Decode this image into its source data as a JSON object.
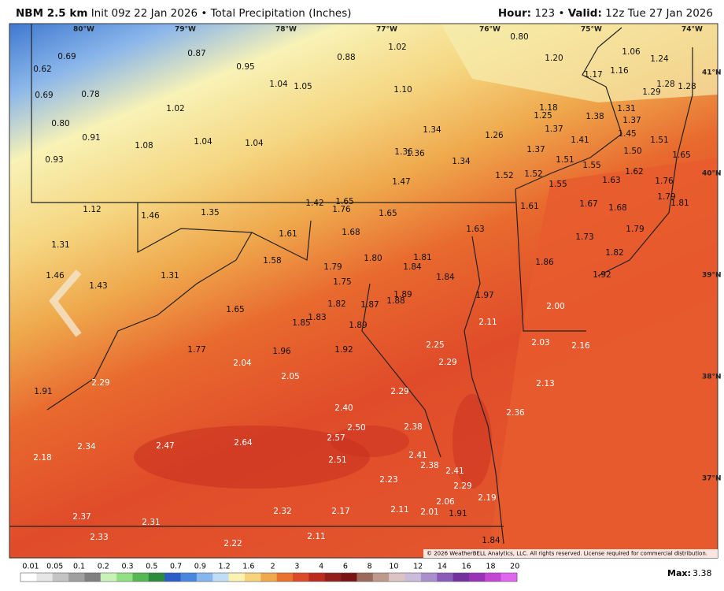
{
  "header": {
    "model": "NBM 2.5 km",
    "init": "Init 09z 22 Jan 2026",
    "sep": "•",
    "product": "Total Precipitation (Inches)",
    "hour_label": "Hour:",
    "hour": "123",
    "valid_label": "Valid:",
    "valid": "12z Tue 27 Jan 2026"
  },
  "map": {
    "longitudes": [
      "80°W",
      "79°W",
      "78°W",
      "77°W",
      "76°W",
      "75°W",
      "74°W"
    ],
    "latitudes": [
      "41°N",
      "40°N",
      "39°N",
      "38°N",
      "37°N"
    ],
    "values": [
      "0.69",
      "0.62",
      "0.69",
      "0.78",
      "0.80",
      "0.91",
      "0.93",
      "0.87",
      "0.95",
      "0.88",
      "1.02",
      "0.80",
      "1.20",
      "1.06",
      "1.24",
      "1.17",
      "1.16",
      "1.28",
      "1.28",
      "1.29",
      "1.04",
      "1.05",
      "1.10",
      "1.02",
      "1.08",
      "1.04",
      "1.04",
      "1.34",
      "1.26",
      "1.18",
      "1.25",
      "1.37",
      "1.38",
      "1.31",
      "1.37",
      "1.45",
      "1.51",
      "1.41",
      "1.37",
      "1.51",
      "1.50",
      "1.65",
      "1.36",
      "1.36",
      "1.34",
      "1.52",
      "1.52",
      "1.55",
      "1.55",
      "1.62",
      "1.63",
      "1.76",
      "1.79",
      "1.47",
      "1.12",
      "1.46",
      "1.35",
      "1.42",
      "1.65",
      "1.76",
      "1.65",
      "1.61",
      "1.67",
      "1.68",
      "1.81",
      "1.31",
      "1.61",
      "1.68",
      "1.63",
      "1.79",
      "1.73",
      "1.58",
      "1.80",
      "1.81",
      "1.84",
      "1.86",
      "1.82",
      "1.46",
      "1.43",
      "1.31",
      "1.79",
      "1.75",
      "1.92",
      "1.84",
      "1.97",
      "2.00",
      "1.89",
      "1.88",
      "1.82",
      "1.87",
      "1.65",
      "1.85",
      "1.83",
      "1.89",
      "2.11",
      "2.03",
      "2.16",
      "1.77",
      "1.96",
      "1.92",
      "2.25",
      "2.29",
      "2.04",
      "2.05",
      "1.91",
      "2.29",
      "2.13",
      "2.29",
      "2.36",
      "2.40",
      "2.50",
      "2.38",
      "2.57",
      "2.18",
      "2.34",
      "2.47",
      "2.64",
      "2.51",
      "2.41",
      "2.38",
      "2.41",
      "2.23",
      "2.29",
      "2.19",
      "2.06",
      "2.32",
      "2.17",
      "2.11",
      "2.01",
      "1.91",
      "2.37",
      "2.31",
      "2.33",
      "2.11",
      "2.22",
      "1.84"
    ]
  },
  "credit": "© 2026 WeatherBELL Analytics, LLC. All rights reserved. License required for commercial distribution.",
  "legend": {
    "labels": [
      "0.01",
      "0.05",
      "0.1",
      "0.2",
      "0.3",
      "0.5",
      "0.7",
      "0.9",
      "1.2",
      "1.6",
      "2",
      "3",
      "4",
      "6",
      "8",
      "10",
      "12",
      "14",
      "16",
      "18",
      "20"
    ],
    "colors": [
      "#ffffff",
      "#e6e6e6",
      "#c4c4c4",
      "#a0a0a0",
      "#808080",
      "#c9f2b8",
      "#93df86",
      "#55b855",
      "#2d8c3c",
      "#2b5cc8",
      "#4a86e0",
      "#86b6ee",
      "#c0dcf6",
      "#faf2b0",
      "#f6d47c",
      "#f0a84c",
      "#e8722e",
      "#dc4a2a",
      "#bb2b20",
      "#941f1a",
      "#7a1414",
      "#9c6a5c",
      "#bf9a8c",
      "#dcc4c4",
      "#cbbcdc",
      "#a98fcb",
      "#8a5cb8",
      "#74309e",
      "#9a32b8",
      "#c446d4",
      "#e066f0"
    ]
  },
  "max": {
    "label": "Max:",
    "value": "3.38"
  }
}
